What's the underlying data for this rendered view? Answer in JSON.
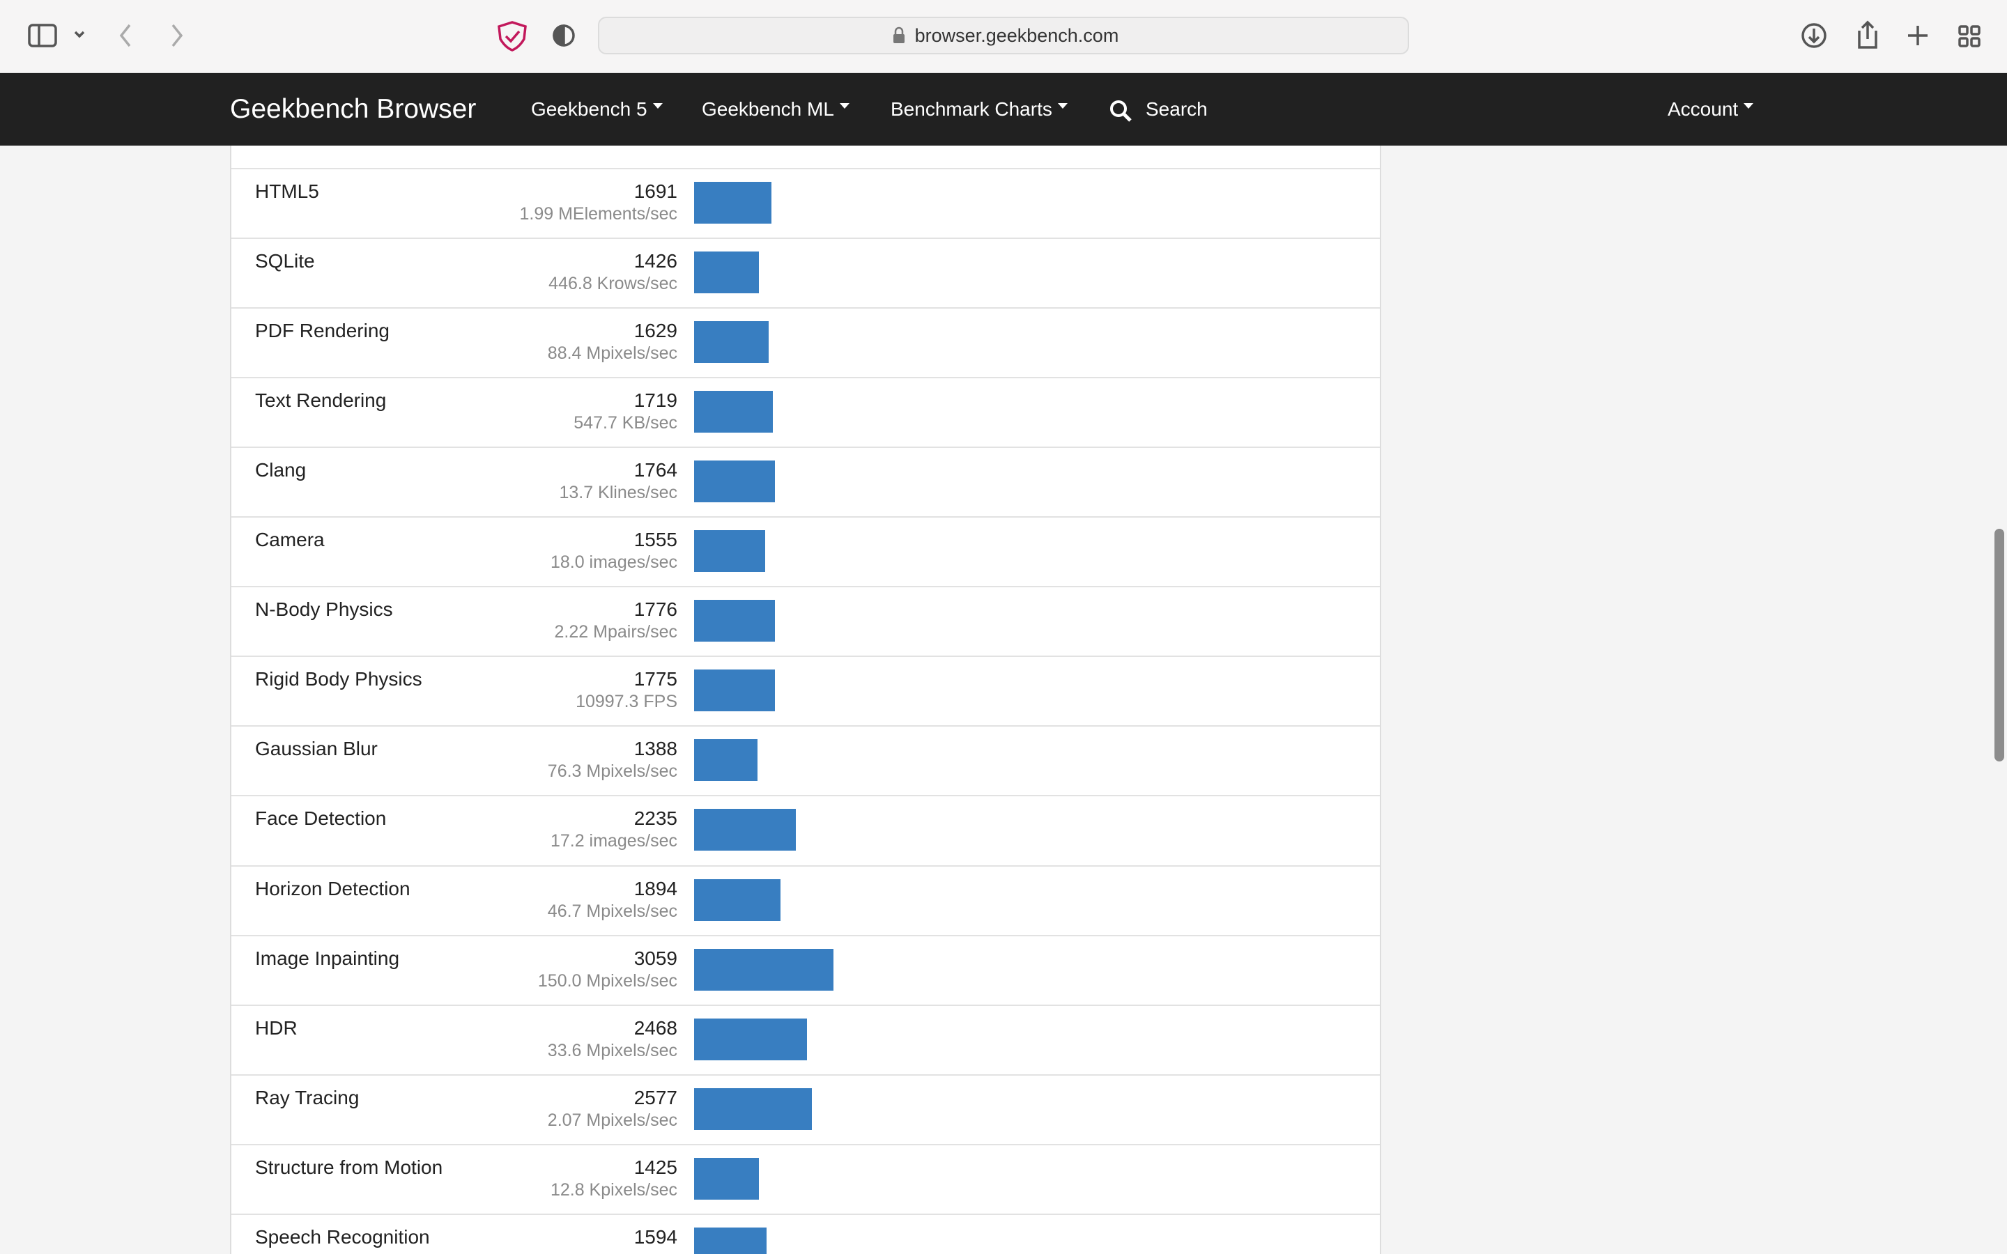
{
  "browser": {
    "url": "browser.geekbench.com"
  },
  "nav": {
    "brand": "Geekbench Browser",
    "menus": [
      "Geekbench 5",
      "Geekbench ML",
      "Benchmark Charts"
    ],
    "search": "Search",
    "account": "Account"
  },
  "rows": [
    {
      "name": "HTML5",
      "score": 1691,
      "rate": "1.99 MElements/sec"
    },
    {
      "name": "SQLite",
      "score": 1426,
      "rate": "446.8 Krows/sec"
    },
    {
      "name": "PDF Rendering",
      "score": 1629,
      "rate": "88.4 Mpixels/sec"
    },
    {
      "name": "Text Rendering",
      "score": 1719,
      "rate": "547.7 KB/sec"
    },
    {
      "name": "Clang",
      "score": 1764,
      "rate": "13.7 Klines/sec"
    },
    {
      "name": "Camera",
      "score": 1555,
      "rate": "18.0 images/sec"
    },
    {
      "name": "N-Body Physics",
      "score": 1776,
      "rate": "2.22 Mpairs/sec"
    },
    {
      "name": "Rigid Body Physics",
      "score": 1775,
      "rate": "10997.3 FPS"
    },
    {
      "name": "Gaussian Blur",
      "score": 1388,
      "rate": "76.3 Mpixels/sec"
    },
    {
      "name": "Face Detection",
      "score": 2235,
      "rate": "17.2 images/sec"
    },
    {
      "name": "Horizon Detection",
      "score": 1894,
      "rate": "46.7 Mpixels/sec"
    },
    {
      "name": "Image Inpainting",
      "score": 3059,
      "rate": "150.0 Mpixels/sec"
    },
    {
      "name": "HDR",
      "score": 2468,
      "rate": "33.6 Mpixels/sec"
    },
    {
      "name": "Ray Tracing",
      "score": 2577,
      "rate": "2.07 Mpixels/sec"
    },
    {
      "name": "Structure from Motion",
      "score": 1425,
      "rate": "12.8 Kpixels/sec"
    },
    {
      "name": "Speech Recognition",
      "score": 1594
    }
  ]
}
